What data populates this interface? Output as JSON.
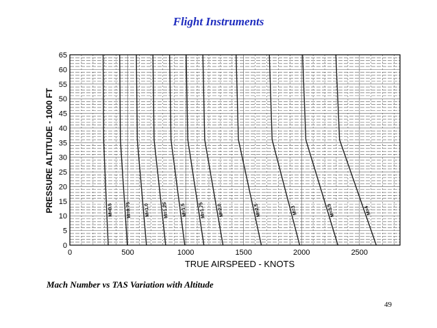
{
  "slide": {
    "title": "Flight Instruments",
    "caption": "Mach Number vs TAS Variation with Altitude",
    "page_number": "49",
    "title_color": "#1f2dbf"
  },
  "chart_data": {
    "type": "line",
    "title": "",
    "xlabel": "TRUE AIRSPEED - KNOTS",
    "ylabel": "PRESSURE ALTITUDE - 1000 FT",
    "xlim": [
      0,
      2850
    ],
    "ylim": [
      0,
      65
    ],
    "x_ticks": [
      0,
      500,
      1000,
      1500,
      2000,
      2500
    ],
    "y_ticks": [
      0,
      5,
      10,
      15,
      20,
      25,
      30,
      35,
      40,
      45,
      50,
      55,
      60,
      65
    ],
    "grid": true,
    "line_color": "#222222",
    "series": [
      {
        "name": "M=0.5",
        "x": [
          331,
          291,
          287
        ],
        "y": [
          0,
          36,
          65
        ]
      },
      {
        "name": "M=0.75",
        "x": [
          496,
          436,
          430
        ],
        "y": [
          0,
          36,
          65
        ]
      },
      {
        "name": "M=1.0",
        "x": [
          661,
          582,
          574
        ],
        "y": [
          0,
          36,
          65
        ]
      },
      {
        "name": "M=1.25",
        "x": [
          827,
          727,
          717
        ],
        "y": [
          0,
          36,
          65
        ]
      },
      {
        "name": "M=1.5",
        "x": [
          992,
          873,
          861
        ],
        "y": [
          0,
          36,
          65
        ]
      },
      {
        "name": "M=1.75",
        "x": [
          1157,
          1018,
          1004
        ],
        "y": [
          0,
          36,
          65
        ]
      },
      {
        "name": "M=2.0",
        "x": [
          1322,
          1164,
          1148
        ],
        "y": [
          0,
          36,
          65
        ]
      },
      {
        "name": "M=2.5",
        "x": [
          1653,
          1455,
          1435
        ],
        "y": [
          0,
          36,
          65
        ]
      },
      {
        "name": "M=3",
        "x": [
          1984,
          1746,
          1722
        ],
        "y": [
          0,
          36,
          65
        ]
      },
      {
        "name": "M=3.5",
        "x": [
          2314,
          2037,
          2009
        ],
        "y": [
          0,
          36,
          65
        ]
      },
      {
        "name": "M=4",
        "x": [
          2645,
          2328,
          2296
        ],
        "y": [
          0,
          36,
          65
        ]
      }
    ]
  }
}
